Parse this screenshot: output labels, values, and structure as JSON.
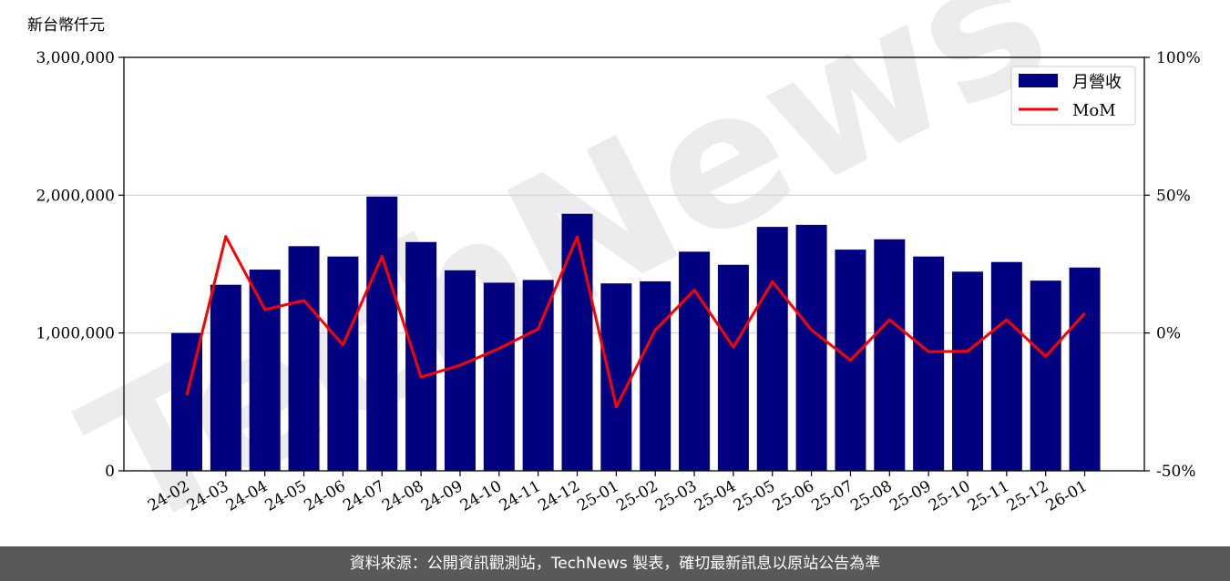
{
  "chart_data": {
    "type": "bar",
    "ylabel": "新台幣仟元",
    "categories": [
      "24-02",
      "24-03",
      "24-04",
      "24-05",
      "24-06",
      "24-07",
      "24-08",
      "24-09",
      "24-10",
      "24-11",
      "24-12",
      "25-01",
      "25-02",
      "25-03",
      "25-04",
      "25-05",
      "25-06",
      "25-07",
      "25-08",
      "25-09",
      "25-10",
      "25-11",
      "25-12",
      "26-01"
    ],
    "series": [
      {
        "name": "月營收",
        "axis": "left",
        "type": "bar",
        "color": "#000080",
        "values": [
          1000000,
          1350000,
          1460000,
          1630000,
          1555000,
          1990000,
          1660000,
          1455000,
          1365000,
          1385000,
          1865000,
          1360000,
          1375000,
          1590000,
          1495000,
          1770000,
          1785000,
          1605000,
          1680000,
          1555000,
          1445000,
          1515000,
          1380000,
          1475000
        ]
      },
      {
        "name": "MoM",
        "axis": "right",
        "type": "line",
        "unit": "%",
        "color": "#ff0000",
        "values": [
          -22.5,
          35,
          8.5,
          11.8,
          -4.3,
          27.8,
          -16,
          -11.7,
          -5.6,
          1.5,
          34.9,
          -26.8,
          1.1,
          15.6,
          -5.1,
          18.6,
          1.1,
          -9.9,
          4.8,
          -6.8,
          -6.6,
          4.8,
          -8.5,
          7.2
        ]
      }
    ],
    "ylim": [
      0,
      3000000
    ],
    "y_ticks": [
      "0",
      "1,000,000",
      "2,000,000",
      "3,000,000"
    ],
    "y2lim": [
      -50,
      100
    ],
    "y2_ticks": [
      "-50%",
      "0%",
      "50%",
      "100%"
    ],
    "grid": "horizontal",
    "legend_position": "top-right",
    "watermark": "TechNews"
  },
  "footer": {
    "source_text": "資料來源：公開資訊觀測站，TechNews 製表，確切最新訊息以原站公告為準"
  }
}
